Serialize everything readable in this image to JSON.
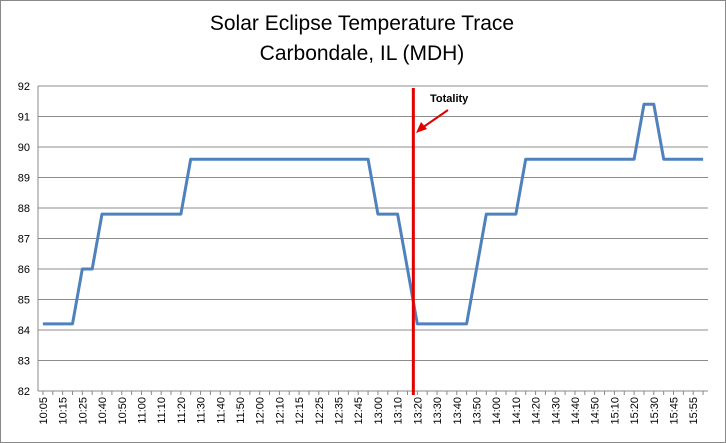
{
  "chart_data": {
    "type": "line",
    "title": "Solar Eclipse Temperature Trace",
    "subtitle": "Carbondale, IL (MDH)",
    "categories": [
      "10:05",
      null,
      "10:15",
      null,
      "10:25",
      null,
      "10:40",
      null,
      "10:50",
      null,
      "11:00",
      null,
      "11:10",
      null,
      "11:20",
      null,
      "11:30",
      null,
      "11:40",
      null,
      "11:50",
      null,
      "12:00",
      null,
      "12:10",
      null,
      "12:15",
      null,
      "12:25",
      null,
      "12:35",
      null,
      "12:45",
      null,
      "13:00",
      null,
      "13:10",
      null,
      "13:20",
      null,
      "13:30",
      null,
      "13:40",
      null,
      "13:50",
      null,
      "14:00",
      null,
      "14:10",
      null,
      "14:20",
      null,
      "14:30",
      null,
      "14:40",
      null,
      "14:50",
      null,
      "15:10",
      null,
      "15:20",
      null,
      "15:30",
      null,
      "15:45",
      null,
      "15:55",
      null
    ],
    "series": [
      {
        "color": "#4f81bd",
        "values": [
          84.2,
          84.2,
          84.2,
          84.2,
          86,
          86,
          87.8,
          87.8,
          87.8,
          87.8,
          87.8,
          87.8,
          87.8,
          87.8,
          87.8,
          89.6,
          89.6,
          89.6,
          89.6,
          89.6,
          89.6,
          89.6,
          89.6,
          89.6,
          89.6,
          89.6,
          89.6,
          89.6,
          89.6,
          89.6,
          89.6,
          89.6,
          89.6,
          89.6,
          87.8,
          87.8,
          87.8,
          86,
          84.2,
          84.2,
          84.2,
          84.2,
          84.2,
          84.2,
          86,
          87.8,
          87.8,
          87.8,
          87.8,
          89.6,
          89.6,
          89.6,
          89.6,
          89.6,
          89.6,
          89.6,
          89.6,
          89.6,
          89.6,
          89.6,
          89.6,
          91.4,
          91.4,
          89.6,
          89.6,
          89.6,
          89.6,
          89.6
        ]
      }
    ],
    "ylim": [
      82,
      92
    ],
    "yticks": [
      82,
      83,
      84,
      85,
      86,
      87,
      88,
      89,
      90,
      91,
      92
    ],
    "grid": true,
    "annotation": {
      "text": "Totality",
      "at": "13:20",
      "color": "#e00000"
    }
  }
}
